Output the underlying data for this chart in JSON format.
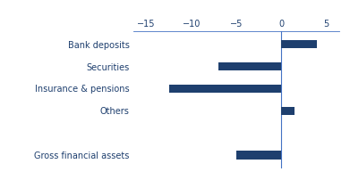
{
  "categories": [
    "Bank deposits",
    "Securities",
    "Insurance & pensions",
    "Others",
    "",
    "Gross financial assets"
  ],
  "values": [
    4.0,
    -7.0,
    -12.5,
    1.5,
    null,
    -5.0
  ],
  "bar_color": "#1e3f6e",
  "xlim": [
    -16.5,
    6.5
  ],
  "xticks": [
    -15,
    -10,
    -5,
    0,
    5
  ],
  "bar_height": 0.38,
  "background_color": "#ffffff",
  "axis_color": "#4472c4",
  "text_color": "#1e3f6e",
  "tick_fontsize": 7,
  "label_fontsize": 7
}
